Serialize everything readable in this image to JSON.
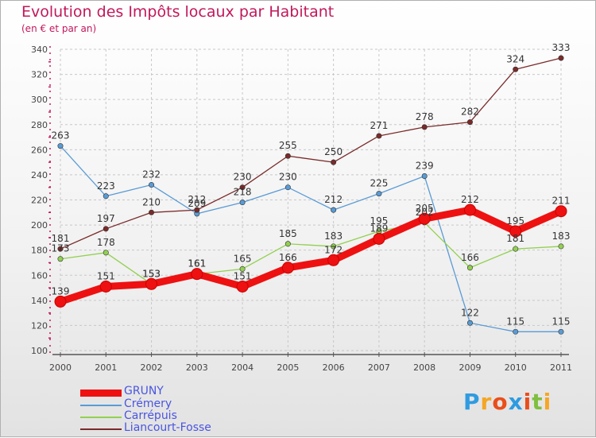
{
  "title": "Evolution des Impôts locaux par Habitant",
  "subtitle": "(en € et par an)",
  "logo_text": "Proxiti",
  "chart_data": {
    "type": "line",
    "title": "Evolution des Impôts locaux par Habitant",
    "subtitle": "(en € et par an)",
    "xlabel": "",
    "ylabel": "",
    "x": [
      "2000",
      "2001",
      "2002",
      "2003",
      "2004",
      "2005",
      "2006",
      "2007",
      "2008",
      "2009",
      "2010",
      "2011"
    ],
    "ylim": [
      100,
      340
    ],
    "yticks": [
      "100",
      "120",
      "140",
      "160",
      "180",
      "200",
      "220",
      "240",
      "260",
      "280",
      "300",
      "320",
      "340"
    ],
    "grid": true,
    "legend_position": "bottom-left",
    "series": [
      {
        "name": "GRUNY",
        "color": "#ee1111",
        "width": 9,
        "values": [
          139,
          151,
          153,
          161,
          151,
          166,
          172,
          189,
          205,
          212,
          195,
          211
        ],
        "labels": [
          "139",
          "151",
          "153",
          "161",
          "151",
          "166",
          "172",
          "189",
          "205",
          "212",
          "195",
          "211"
        ]
      },
      {
        "name": "Crémery",
        "color": "#5a9bd5",
        "width": 1.3,
        "values": [
          263,
          223,
          232,
          209,
          218,
          230,
          212,
          225,
          239,
          122,
          115,
          115
        ],
        "labels": [
          "263",
          "223",
          "232",
          "209",
          "218",
          "230",
          "212",
          "225",
          "239",
          "122",
          "115",
          "115"
        ]
      },
      {
        "name": "Carrépuis",
        "color": "#92d050",
        "width": 1.3,
        "values": [
          173,
          178,
          153,
          161,
          165,
          185,
          183,
          195,
          202,
          166,
          181,
          183
        ],
        "labels": [
          "173",
          "178",
          "153",
          "161",
          "165",
          "185",
          "183",
          "195",
          "202",
          "166",
          "181",
          "183"
        ]
      },
      {
        "name": "Liancourt-Fosse",
        "color": "#7a2a2a",
        "width": 1.3,
        "values": [
          181,
          197,
          210,
          212,
          230,
          255,
          250,
          271,
          278,
          282,
          324,
          333
        ],
        "labels": [
          "181",
          "197",
          "210",
          "212",
          "230",
          "255",
          "250",
          "271",
          "278",
          "282",
          "324",
          "333"
        ]
      }
    ]
  }
}
